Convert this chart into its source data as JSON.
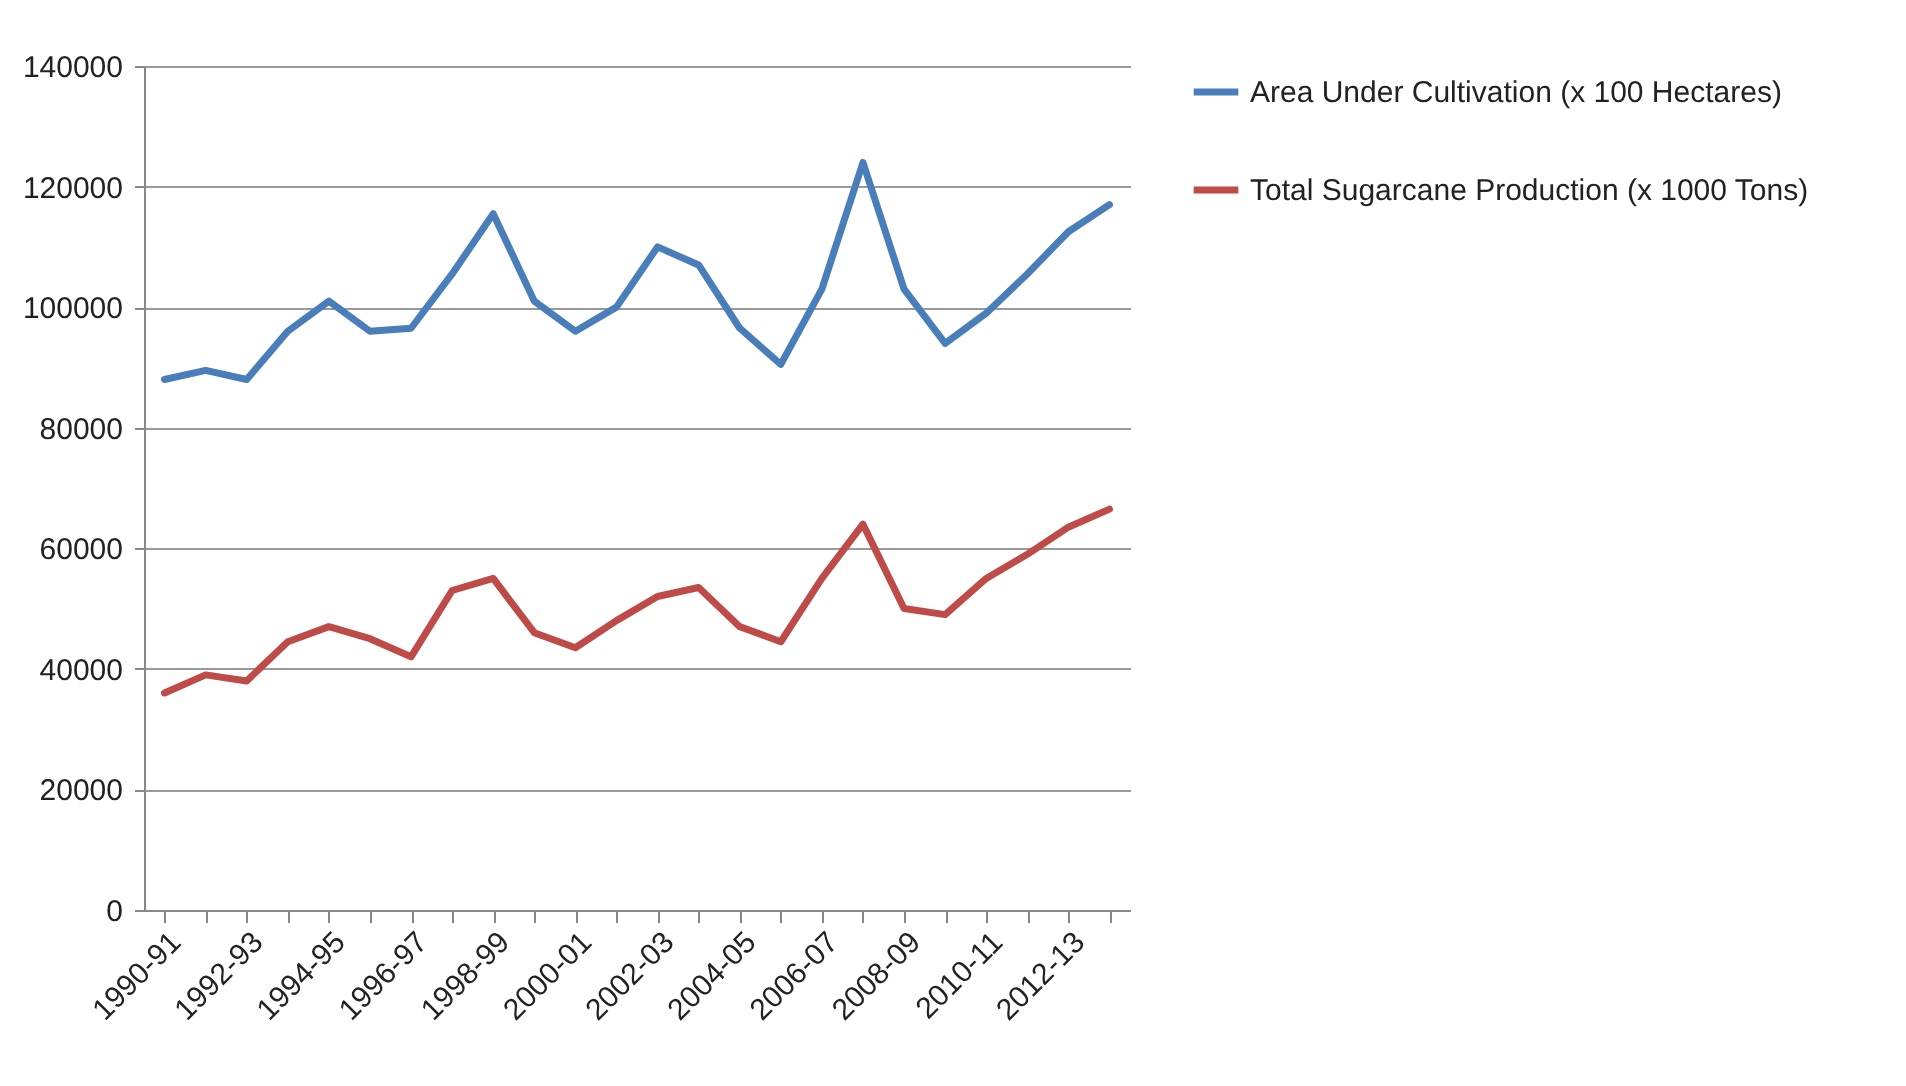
{
  "chart_data": {
    "type": "line",
    "categories": [
      "1990-91",
      null,
      "1992-93",
      null,
      "1994-95",
      null,
      "1996-97",
      null,
      "1998-99",
      null,
      "2000-01",
      null,
      "2002-03",
      null,
      "2004-05",
      null,
      "2006-07",
      null,
      "2008-09",
      null,
      "2010-11",
      null,
      "2012-13",
      null
    ],
    "series": [
      {
        "name": "Area Under Cultivation (x 100 Hectares)",
        "color": "#4a7ebb",
        "values": [
          88000,
          89500,
          88000,
          96000,
          101000,
          96000,
          96500,
          105500,
          115500,
          101000,
          96000,
          100000,
          110000,
          107000,
          96500,
          90500,
          103000,
          124000,
          103000,
          94000,
          99000,
          105500,
          112500,
          117000
        ]
      },
      {
        "name": "Total Sugarcane Production (x 1000 Tons)",
        "color": "#be4b48",
        "values": [
          36000,
          39000,
          38000,
          44500,
          47000,
          45000,
          42000,
          53000,
          55000,
          46000,
          43500,
          48000,
          52000,
          53500,
          47000,
          44500,
          55000,
          64000,
          50000,
          49000,
          55000,
          59000,
          63500,
          66500
        ]
      }
    ],
    "ylim": [
      0,
      140000
    ],
    "yticks": [
      0,
      20000,
      40000,
      60000,
      80000,
      100000,
      120000,
      140000
    ],
    "grid": "y",
    "legend": "right"
  }
}
